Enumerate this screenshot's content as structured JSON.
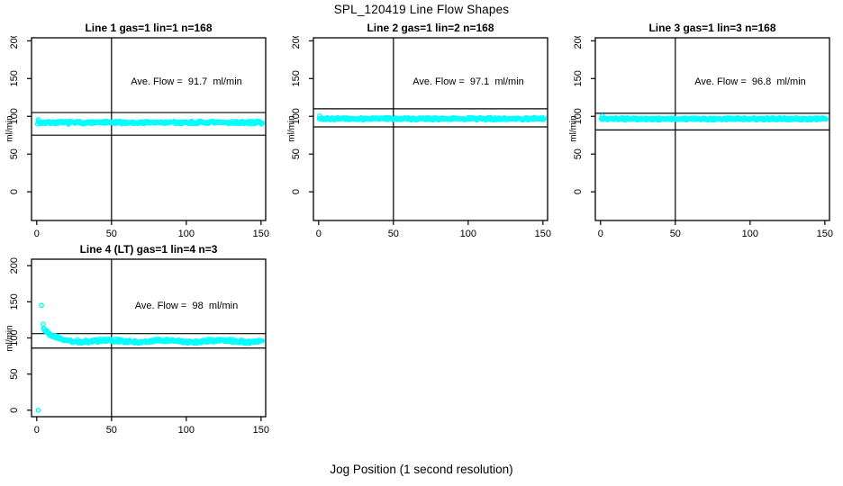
{
  "figure": {
    "title": "SPL_120419  Line Flow Shapes",
    "xlabel": "Jog Position (1 second resolution)",
    "background_color": "#ffffff",
    "axis_color": "#000000"
  },
  "chart_data": {
    "type": "scatter",
    "point_style": "open-circle",
    "point_color": "#00ffff",
    "xlabel": "Jog Position (1 second resolution)",
    "ylabel": "ml/min",
    "x_ticks": [
      0,
      50,
      100,
      150
    ],
    "y_ticks": [
      0,
      50,
      100,
      150,
      200
    ],
    "xlim": [
      0,
      150
    ],
    "ylim": [
      0,
      200
    ],
    "grid": false,
    "legend": false,
    "vline_x": 50,
    "panels": [
      {
        "title": "Line 1 gas=1 lin=1 n=168",
        "annotation": "Ave. Flow =  91.7  ml/min",
        "ave_flow_ml_min": 91.7,
        "n": 168,
        "ref_lines": {
          "upper": 105,
          "lower": 75
        },
        "band": {
          "x_start": 0.5,
          "x_end": 151,
          "mean": 91.7,
          "jitter": 2.2
        },
        "outliers": [
          [
            1,
            95.5
          ]
        ]
      },
      {
        "title": "Line 2 gas=1 lin=2 n=168",
        "annotation": "Ave. Flow =  97.1  ml/min",
        "ave_flow_ml_min": 97.1,
        "n": 168,
        "ref_lines": {
          "upper": 110,
          "lower": 86
        },
        "band": {
          "x_start": 0.5,
          "x_end": 151,
          "mean": 96.8,
          "jitter": 1.8
        },
        "outliers": [
          [
            0.7,
            100.5
          ]
        ]
      },
      {
        "title": "Line 3 gas=1 lin=3 n=168",
        "annotation": "Ave. Flow =  96.8  ml/min",
        "ave_flow_ml_min": 96.8,
        "n": 168,
        "ref_lines": {
          "upper": 104,
          "lower": 82
        },
        "band": {
          "x_start": 0.5,
          "x_end": 151,
          "mean": 96.5,
          "jitter": 1.8
        },
        "outliers": [
          [
            1.2,
            100.5
          ]
        ]
      },
      {
        "title": "Line 4 (LT) gas=1 lin=4 n=3",
        "annotation": "Ave. Flow =  98  ml/min",
        "ave_flow_ml_min": 98,
        "n": 3,
        "ref_lines": {
          "upper": 106,
          "lower": 86
        },
        "band": {
          "x_start": 4.5,
          "x_end": 151,
          "mean": 95.5,
          "jitter": 2.6,
          "decay_amp": 17,
          "decay_tau": 6,
          "wiggle": 1.2
        },
        "outliers": [
          [
            1,
            0
          ],
          [
            3.2,
            145
          ],
          [
            4.3,
            119
          ]
        ]
      }
    ]
  }
}
